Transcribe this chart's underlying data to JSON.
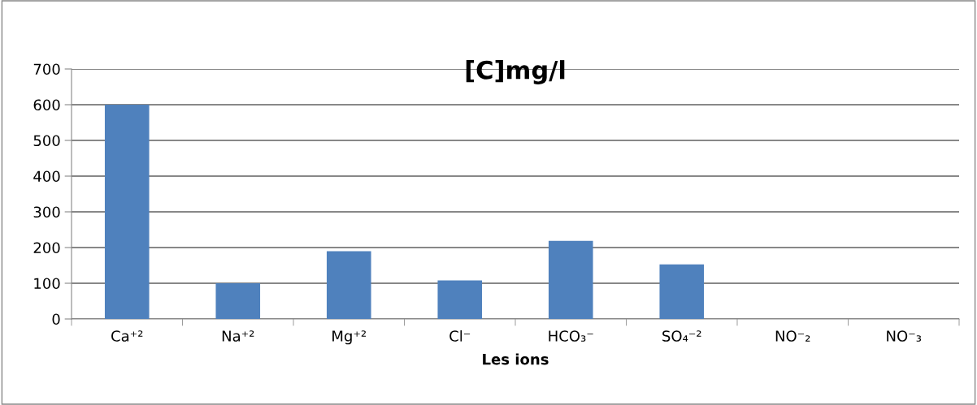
{
  "chart_data": {
    "type": "bar",
    "title": "[C]mg/l",
    "xlabel": "Les ions",
    "categories": [
      "Ca⁺²",
      "Na⁺²",
      "Mg⁺²",
      "Cl⁻",
      "HCO₃⁻",
      "SO₄⁻²",
      "NO⁻₂",
      "NO⁻₃"
    ],
    "values": [
      600,
      100,
      190,
      108,
      219,
      153,
      0,
      0
    ],
    "color": "#4f81bd",
    "ylim": [
      0,
      700
    ],
    "yticks": [
      0,
      100,
      200,
      300,
      400,
      500,
      600,
      700
    ],
    "grid": "y",
    "legend": false
  }
}
